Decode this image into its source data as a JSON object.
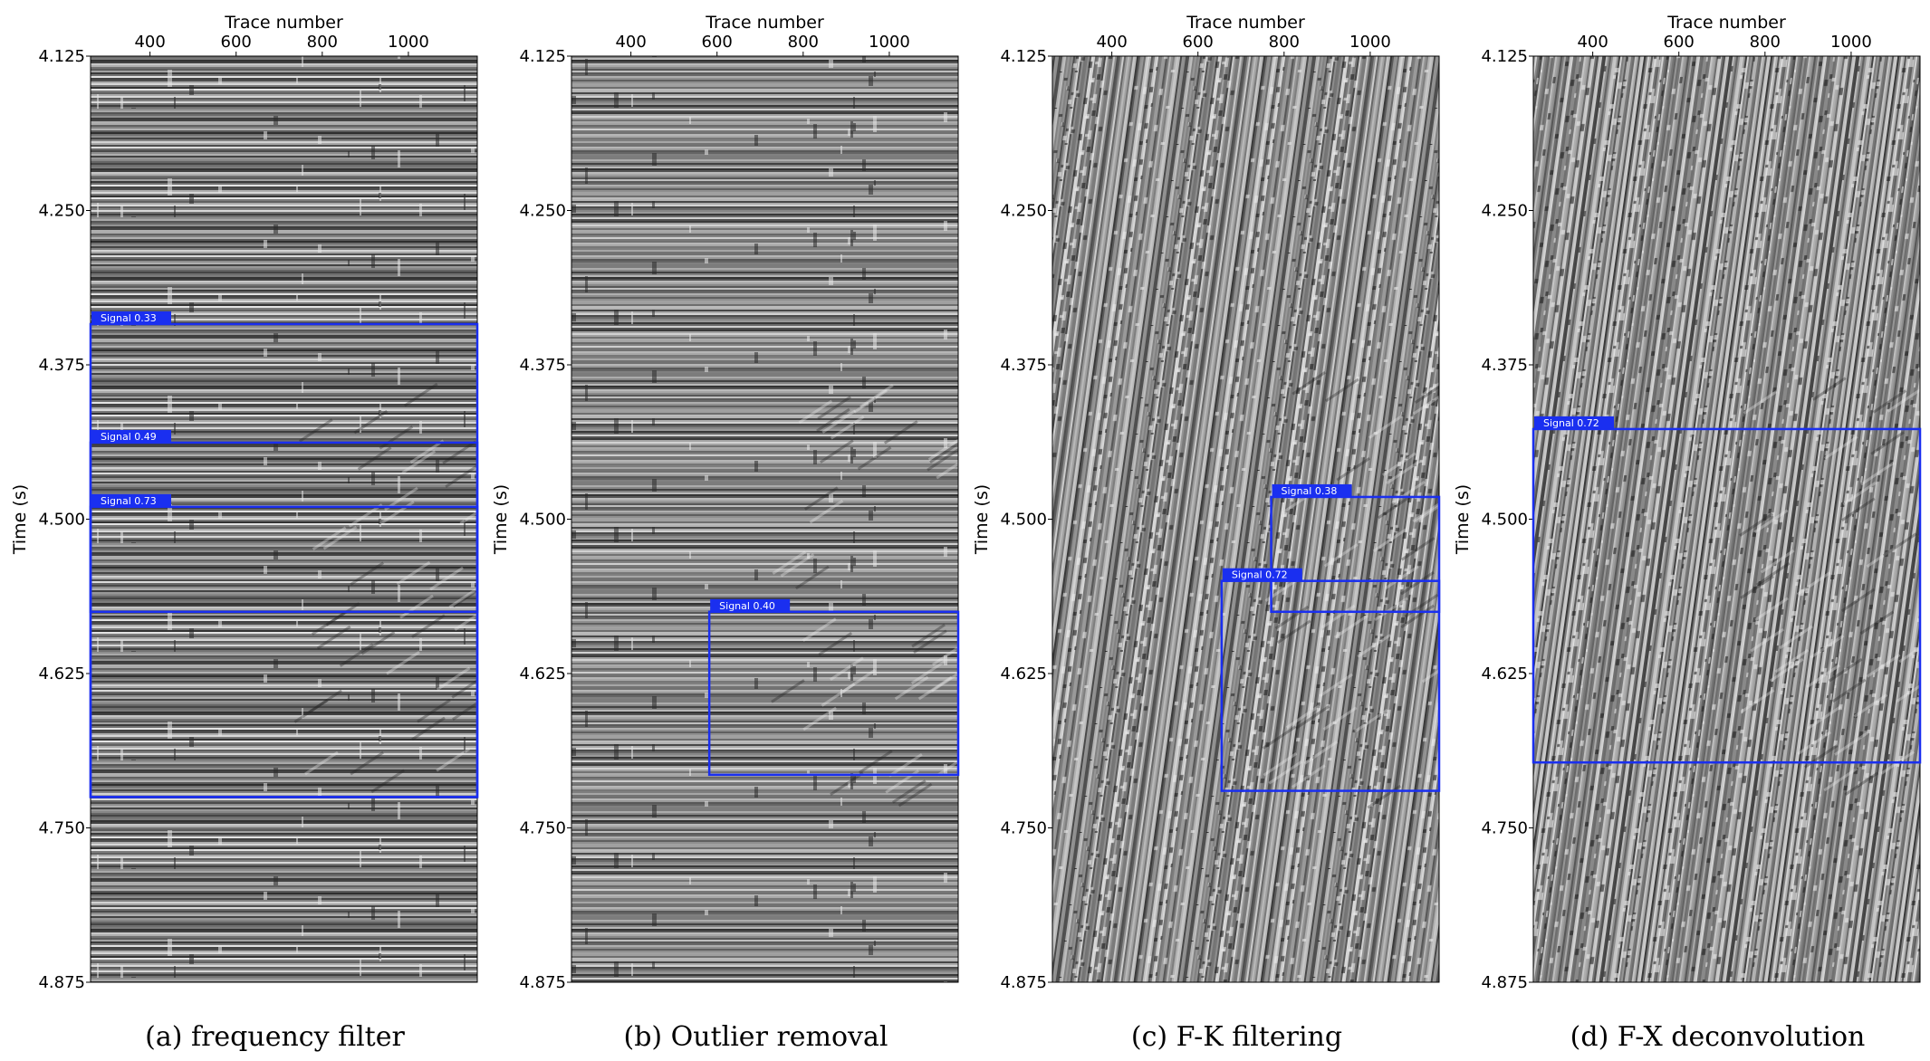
{
  "chart_data": [
    {
      "type": "heatmap",
      "caption": "(a) frequency filter",
      "xlabel": "Trace number",
      "ylabel": "Time (s)",
      "x_ticks": [
        400,
        600,
        800,
        1000
      ],
      "y_ticks": [
        "4.125",
        "4.250",
        "4.375",
        "4.500",
        "4.625",
        "4.750",
        "4.875"
      ],
      "xlim": [
        262,
        1160
      ],
      "ylim": [
        4.125,
        4.875
      ],
      "texture": "horizontal",
      "detections": [
        {
          "label": "Signal 0.33",
          "x": [
            262,
            1160
          ],
          "t": [
            4.342,
            4.725
          ]
        },
        {
          "label": "Signal 0.49",
          "x": [
            262,
            1160
          ],
          "t": [
            4.438,
            4.575
          ]
        },
        {
          "label": "Signal 0.73",
          "x": [
            262,
            1160
          ],
          "t": [
            4.49,
            4.725
          ]
        }
      ]
    },
    {
      "type": "heatmap",
      "caption": "(b) Outlier removal",
      "xlabel": "Trace number",
      "ylabel": "Time (s)",
      "x_ticks": [
        400,
        600,
        800,
        1000
      ],
      "y_ticks": [
        "4.125",
        "4.250",
        "4.375",
        "4.500",
        "4.625",
        "4.750",
        "4.875"
      ],
      "xlim": [
        262,
        1160
      ],
      "ylim": [
        4.125,
        4.875
      ],
      "texture": "horizontal",
      "detections": [
        {
          "label": "Signal 0.40",
          "x": [
            582,
            1160
          ],
          "t": [
            4.575,
            4.707
          ]
        }
      ]
    },
    {
      "type": "heatmap",
      "caption": "(c) F-K filtering",
      "xlabel": "Trace number",
      "ylabel": "Time (s)",
      "x_ticks": [
        400,
        600,
        800,
        1000
      ],
      "y_ticks": [
        "4.125",
        "4.250",
        "4.375",
        "4.500",
        "4.625",
        "4.750",
        "4.875"
      ],
      "xlim": [
        262,
        1160
      ],
      "ylim": [
        4.125,
        4.875
      ],
      "texture": "vertical",
      "detections": [
        {
          "label": "Signal 0.38",
          "x": [
            770,
            1160
          ],
          "t": [
            4.482,
            4.575
          ]
        },
        {
          "label": "Signal 0.72",
          "x": [
            655,
            1160
          ],
          "t": [
            4.55,
            4.72
          ]
        }
      ]
    },
    {
      "type": "heatmap",
      "caption": "(d) F-X deconvolution",
      "xlabel": "Trace number",
      "ylabel": "Time (s)",
      "x_ticks": [
        400,
        600,
        800,
        1000
      ],
      "y_ticks": [
        "4.125",
        "4.250",
        "4.375",
        "4.500",
        "4.625",
        "4.750",
        "4.875"
      ],
      "xlim": [
        262,
        1160
      ],
      "ylim": [
        4.125,
        4.875
      ],
      "texture": "vertical",
      "detections": [
        {
          "label": "Signal 0.72",
          "x": [
            262,
            1160
          ],
          "t": [
            4.427,
            4.697
          ]
        }
      ]
    }
  ],
  "colors": {
    "box": "#1a2ff0",
    "label_bg": "#1a2ff0",
    "label_text": "#ffffff",
    "seismic_dark": "#1a1a1a",
    "seismic_light": "#f0f0f0"
  }
}
